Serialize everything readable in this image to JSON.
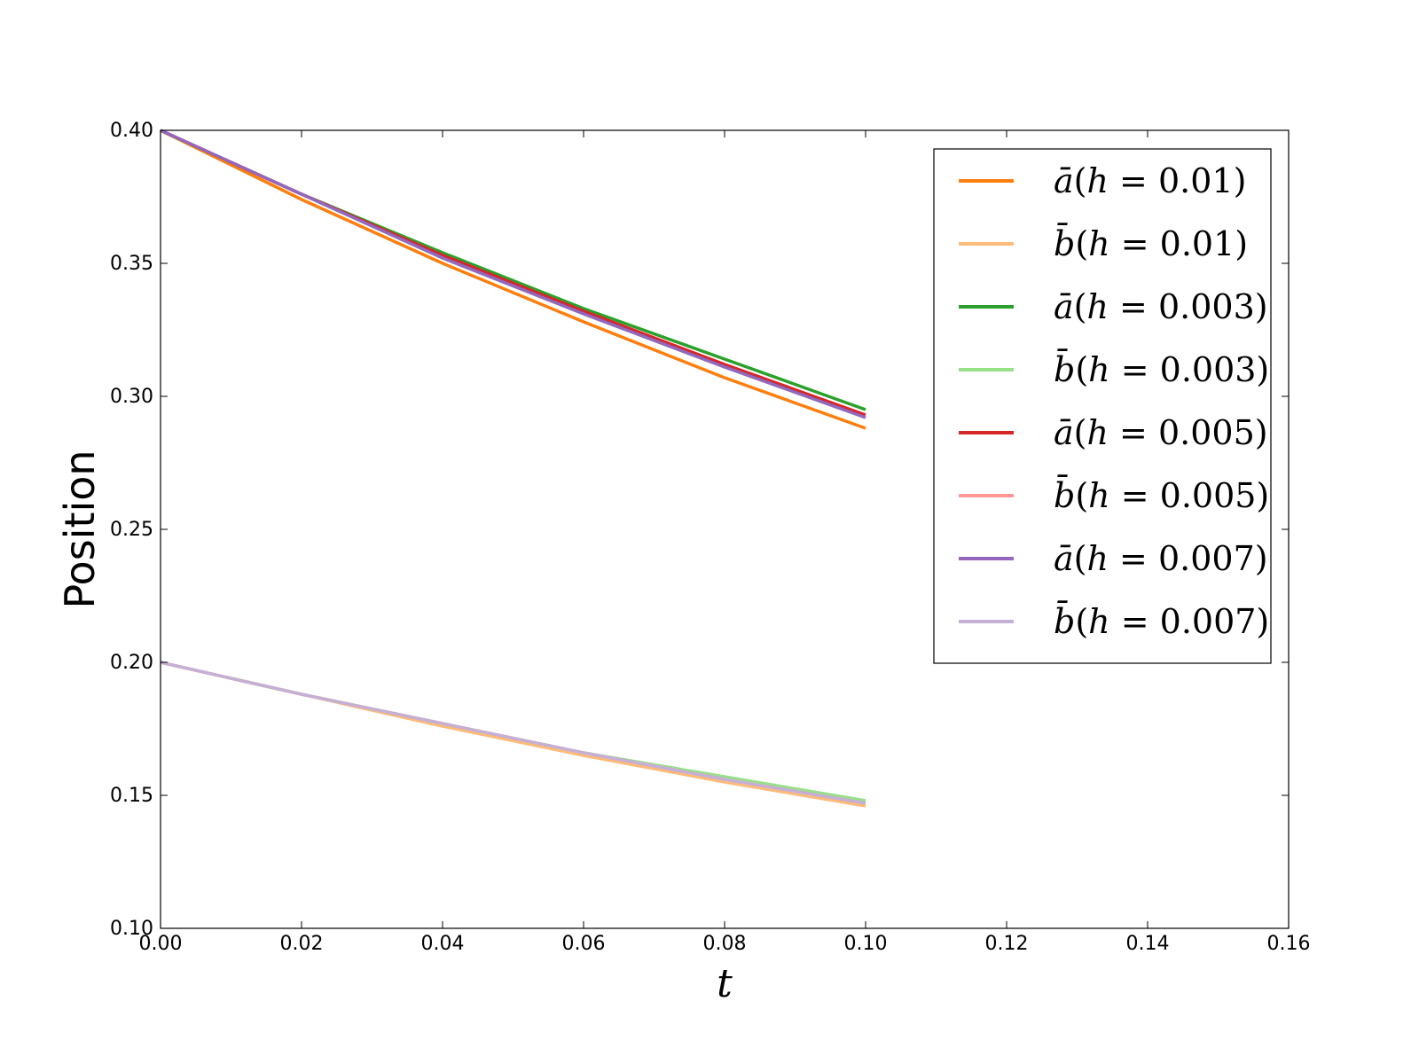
{
  "chart_data": {
    "type": "line",
    "title": "",
    "xlabel": "t",
    "ylabel": "Position",
    "xlim": [
      0.0,
      0.16
    ],
    "ylim": [
      0.1,
      0.4
    ],
    "xticks": [
      "0.00",
      "0.02",
      "0.04",
      "0.06",
      "0.08",
      "0.10",
      "0.12",
      "0.14",
      "0.16"
    ],
    "yticks": [
      "0.10",
      "0.15",
      "0.20",
      "0.25",
      "0.30",
      "0.35",
      "0.40"
    ],
    "grid": false,
    "legend_position": "top-right",
    "series": [
      {
        "name": "ā(h = 0.01)",
        "var": "a",
        "h": "0.01",
        "color": "#ff7f0e",
        "x": [
          0.0,
          0.02,
          0.04,
          0.06,
          0.08,
          0.1
        ],
        "y": [
          0.4,
          0.374,
          0.35,
          0.328,
          0.307,
          0.288
        ]
      },
      {
        "name": "b̄(h = 0.01)",
        "var": "b",
        "h": "0.01",
        "color": "#ffbb78",
        "x": [
          0.0,
          0.02,
          0.04,
          0.06,
          0.08,
          0.1
        ],
        "y": [
          0.2,
          0.188,
          0.176,
          0.165,
          0.155,
          0.146
        ]
      },
      {
        "name": "ā(h = 0.003)",
        "var": "a",
        "h": "0.003",
        "color": "#2ca02c",
        "x": [
          0.0,
          0.02,
          0.04,
          0.06,
          0.08,
          0.1
        ],
        "y": [
          0.4,
          0.376,
          0.354,
          0.333,
          0.314,
          0.295
        ]
      },
      {
        "name": "b̄(h = 0.003)",
        "var": "b",
        "h": "0.003",
        "color": "#98df8a",
        "x": [
          0.0,
          0.02,
          0.04,
          0.06,
          0.08,
          0.1
        ],
        "y": [
          0.2,
          0.188,
          0.177,
          0.166,
          0.157,
          0.148
        ]
      },
      {
        "name": "ā(h = 0.005)",
        "var": "a",
        "h": "0.005",
        "color": "#d62728",
        "x": [
          0.0,
          0.02,
          0.04,
          0.06,
          0.08,
          0.1
        ],
        "y": [
          0.4,
          0.376,
          0.353,
          0.332,
          0.312,
          0.293
        ]
      },
      {
        "name": "b̄(h = 0.005)",
        "var": "b",
        "h": "0.005",
        "color": "#ff9896",
        "x": [
          0.0,
          0.02,
          0.04,
          0.06,
          0.08,
          0.1
        ],
        "y": [
          0.2,
          0.188,
          0.177,
          0.166,
          0.156,
          0.147
        ]
      },
      {
        "name": "ā(h = 0.007)",
        "var": "a",
        "h": "0.007",
        "color": "#9467bd",
        "x": [
          0.0,
          0.02,
          0.04,
          0.06,
          0.08,
          0.1
        ],
        "y": [
          0.4,
          0.376,
          0.352,
          0.331,
          0.311,
          0.292
        ]
      },
      {
        "name": "b̄(h = 0.007)",
        "var": "b",
        "h": "0.007",
        "color": "#c5b0d5",
        "x": [
          0.0,
          0.02,
          0.04,
          0.06,
          0.08,
          0.1
        ],
        "y": [
          0.2,
          0.188,
          0.177,
          0.166,
          0.156,
          0.147
        ]
      }
    ]
  }
}
